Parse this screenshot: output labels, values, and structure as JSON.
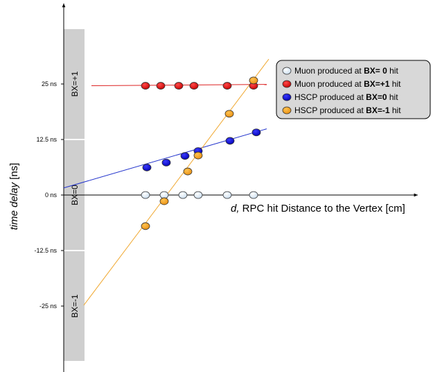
{
  "chart_data": {
    "type": "scatter",
    "title": "",
    "xlabel_prefix": "d,",
    "xlabel_rest": " RPC hit Distance to the Vertex [cm]",
    "ylabel": "time delay",
    "ylabel_unit": " [ns]",
    "ylim": [
      -38,
      43
    ],
    "y_ticks": [
      {
        "value": 25,
        "label": "25 ns"
      },
      {
        "value": 12.5,
        "label": "12.5 ns"
      },
      {
        "value": 0,
        "label": "0 ns"
      },
      {
        "value": -12.5,
        "label": "-12.5 ns"
      },
      {
        "value": -25,
        "label": "-25 ns"
      }
    ],
    "bx_bands": [
      {
        "label": "BX=+1",
        "from": 12.5,
        "to": 37.5
      },
      {
        "label": "BX=0",
        "from": -12.5,
        "to": 12.5
      },
      {
        "label": "BX=-1",
        "from": -37.5,
        "to": -12.5
      }
    ],
    "legend_position": "top-right",
    "series": [
      {
        "legend_pre": "Muon produced at ",
        "legend_bold": "BX= 0",
        "legend_post": " hit",
        "color": "#d8e6f2",
        "line_color": "#000000",
        "x": [
          210,
          237,
          264,
          286,
          328,
          366
        ],
        "y": [
          0,
          0,
          0,
          0,
          0,
          0
        ],
        "fit": {
          "x0": 92,
          "y0": 0,
          "x1": 600,
          "y1": 0
        }
      },
      {
        "legend_pre": "Muon produced at ",
        "legend_bold": "BX=+1",
        "legend_post": " hit",
        "color": "#dd0000",
        "line_color": "#dd2222",
        "x": [
          210,
          232,
          258,
          280,
          328,
          366
        ],
        "y": [
          24.6,
          24.6,
          24.6,
          24.6,
          24.6,
          24.6
        ],
        "fit": {
          "x0": 132,
          "y0": 24.6,
          "x1": 385,
          "y1": 24.9
        }
      },
      {
        "legend_pre": "HSCP produced at ",
        "legend_bold": "BX=0",
        "legend_post": "  hit",
        "color": "#0000cc",
        "line_color": "#2233cc",
        "x": [
          212,
          240,
          267,
          286,
          332,
          370
        ],
        "y": [
          6.2,
          7.3,
          8.8,
          9.9,
          12.2,
          14.1
        ],
        "fit": {
          "x0": 92,
          "y0": 1.6,
          "x1": 385,
          "y1": 14.9
        }
      },
      {
        "legend_pre": "HSCP produced at ",
        "legend_bold": "BX=-1",
        "legend_post": " hit",
        "color": "#f5a020",
        "line_color": "#f0a830",
        "x": [
          210,
          237,
          271,
          286,
          331,
          366
        ],
        "y": [
          -7.0,
          -1.4,
          5.3,
          8.9,
          18.3,
          25.8
        ],
        "fit": {
          "x0": 121,
          "y0": -24.8,
          "x1": 388,
          "y1": 30.6
        }
      }
    ]
  }
}
